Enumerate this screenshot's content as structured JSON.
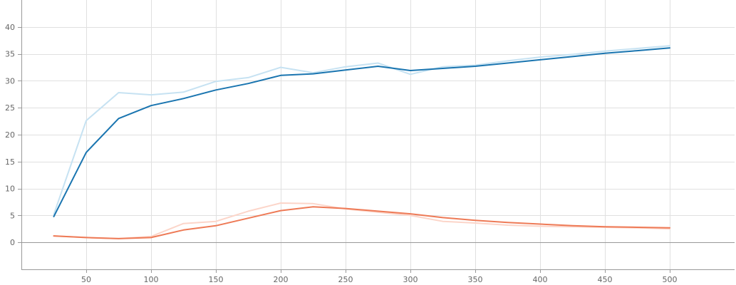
{
  "chart_data": {
    "type": "line",
    "title": "",
    "xlabel": "",
    "ylabel": "",
    "xlim": [
      0,
      550
    ],
    "ylim": [
      -5,
      45
    ],
    "x_ticks": [
      50,
      100,
      150,
      200,
      250,
      300,
      350,
      400,
      450,
      500
    ],
    "x_tick_labels": [
      "50",
      "100",
      "150",
      "200",
      "250",
      "300",
      "350",
      "400",
      "450",
      "500"
    ],
    "y_ticks": [
      0,
      5,
      10,
      15,
      20,
      25,
      30,
      35,
      40
    ],
    "y_tick_labels": [
      "0",
      "5",
      "10",
      "15",
      "20",
      "25",
      "30",
      "35",
      "40"
    ],
    "grid": true,
    "legend": "none",
    "series": [
      {
        "color": "#c6e2f2",
        "points": [
          [
            25,
            5.2
          ],
          [
            50,
            22.6
          ],
          [
            75,
            27.8
          ],
          [
            100,
            27.4
          ],
          [
            125,
            27.9
          ],
          [
            150,
            29.9
          ],
          [
            175,
            30.6
          ],
          [
            200,
            32.5
          ],
          [
            225,
            31.5
          ],
          [
            250,
            32.6
          ],
          [
            275,
            33.3
          ],
          [
            300,
            31.2
          ],
          [
            325,
            32.6
          ],
          [
            350,
            32.9
          ],
          [
            375,
            33.7
          ],
          [
            400,
            34.4
          ],
          [
            425,
            34.9
          ],
          [
            450,
            35.5
          ],
          [
            475,
            36.0
          ],
          [
            500,
            36.5
          ]
        ]
      },
      {
        "color": "#1a75b0",
        "points": [
          [
            25,
            4.8
          ],
          [
            50,
            16.7
          ],
          [
            75,
            23.0
          ],
          [
            100,
            25.4
          ],
          [
            125,
            26.7
          ],
          [
            150,
            28.3
          ],
          [
            175,
            29.5
          ],
          [
            200,
            31.0
          ],
          [
            225,
            31.3
          ],
          [
            250,
            32.0
          ],
          [
            275,
            32.7
          ],
          [
            300,
            31.9
          ],
          [
            325,
            32.3
          ],
          [
            350,
            32.7
          ],
          [
            375,
            33.3
          ],
          [
            400,
            33.9
          ],
          [
            425,
            34.5
          ],
          [
            450,
            35.1
          ],
          [
            475,
            35.6
          ],
          [
            500,
            36.1
          ]
        ]
      },
      {
        "color": "#fcd5c9",
        "points": [
          [
            25,
            1.2
          ],
          [
            50,
            0.9
          ],
          [
            75,
            0.7
          ],
          [
            100,
            1.1
          ],
          [
            125,
            3.5
          ],
          [
            150,
            3.9
          ],
          [
            175,
            5.8
          ],
          [
            200,
            7.3
          ],
          [
            225,
            7.2
          ],
          [
            250,
            6.2
          ],
          [
            275,
            5.6
          ],
          [
            300,
            5.0
          ],
          [
            325,
            3.9
          ],
          [
            350,
            3.6
          ],
          [
            375,
            3.2
          ],
          [
            400,
            3.0
          ],
          [
            425,
            2.9
          ],
          [
            450,
            2.8
          ],
          [
            475,
            2.7
          ],
          [
            500,
            2.5
          ]
        ]
      },
      {
        "color": "#ee7a56",
        "points": [
          [
            25,
            1.2
          ],
          [
            50,
            0.9
          ],
          [
            75,
            0.7
          ],
          [
            100,
            0.9
          ],
          [
            125,
            2.3
          ],
          [
            150,
            3.1
          ],
          [
            175,
            4.5
          ],
          [
            200,
            5.9
          ],
          [
            225,
            6.6
          ],
          [
            250,
            6.3
          ],
          [
            275,
            5.8
          ],
          [
            300,
            5.3
          ],
          [
            325,
            4.6
          ],
          [
            350,
            4.1
          ],
          [
            375,
            3.7
          ],
          [
            400,
            3.4
          ],
          [
            425,
            3.1
          ],
          [
            450,
            2.9
          ],
          [
            475,
            2.8
          ],
          [
            500,
            2.7
          ]
        ]
      }
    ]
  }
}
